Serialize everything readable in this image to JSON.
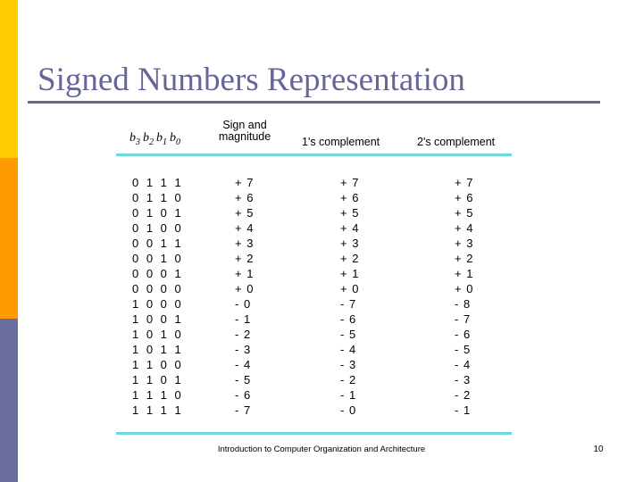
{
  "slide": {
    "title": "Signed Numbers Representation",
    "footer_text": "Introduction to Computer Organization and Architecture",
    "page_number": "10"
  },
  "table": {
    "header": {
      "bit_labels": [
        {
          "base": "b",
          "sub": "3"
        },
        {
          "base": "b",
          "sub": "2"
        },
        {
          "base": "b",
          "sub": "1"
        },
        {
          "base": "b",
          "sub": "0"
        }
      ],
      "sign_magnitude_line1": "Sign and",
      "sign_magnitude_line2": "magnitude",
      "ones_complement": "1's complement",
      "twos_complement": "2's complement"
    },
    "rows": [
      {
        "bits": "0 1 1 1",
        "sign_magnitude": "+ 7",
        "ones_complement": "+ 7",
        "twos_complement": "+ 7"
      },
      {
        "bits": "0 1 1 0",
        "sign_magnitude": "+ 6",
        "ones_complement": "+ 6",
        "twos_complement": "+ 6"
      },
      {
        "bits": "0 1 0 1",
        "sign_magnitude": "+ 5",
        "ones_complement": "+ 5",
        "twos_complement": "+ 5"
      },
      {
        "bits": "0 1 0 0",
        "sign_magnitude": "+ 4",
        "ones_complement": "+ 4",
        "twos_complement": "+ 4"
      },
      {
        "bits": "0 0 1 1",
        "sign_magnitude": "+ 3",
        "ones_complement": "+ 3",
        "twos_complement": "+ 3"
      },
      {
        "bits": "0 0 1 0",
        "sign_magnitude": "+ 2",
        "ones_complement": "+ 2",
        "twos_complement": "+ 2"
      },
      {
        "bits": "0 0 0 1",
        "sign_magnitude": "+ 1",
        "ones_complement": "+ 1",
        "twos_complement": "+ 1"
      },
      {
        "bits": "0 0 0 0",
        "sign_magnitude": "+ 0",
        "ones_complement": "+ 0",
        "twos_complement": "+ 0"
      },
      {
        "bits": "1 0 0 0",
        "sign_magnitude": "- 0",
        "ones_complement": "- 7",
        "twos_complement": "- 8"
      },
      {
        "bits": "1 0 0 1",
        "sign_magnitude": "- 1",
        "ones_complement": "- 6",
        "twos_complement": "- 7"
      },
      {
        "bits": "1 0 1 0",
        "sign_magnitude": "- 2",
        "ones_complement": "- 5",
        "twos_complement": "- 6"
      },
      {
        "bits": "1 0 1 1",
        "sign_magnitude": "- 3",
        "ones_complement": "- 4",
        "twos_complement": "- 5"
      },
      {
        "bits": "1 1 0 0",
        "sign_magnitude": "- 4",
        "ones_complement": "- 3",
        "twos_complement": "- 4"
      },
      {
        "bits": "1 1 0 1",
        "sign_magnitude": "- 5",
        "ones_complement": "- 2",
        "twos_complement": "- 3"
      },
      {
        "bits": "1 1 1 0",
        "sign_magnitude": "- 6",
        "ones_complement": "- 1",
        "twos_complement": "- 2"
      },
      {
        "bits": "1 1 1 1",
        "sign_magnitude": "- 7",
        "ones_complement": "- 0",
        "twos_complement": "- 1"
      }
    ]
  },
  "colors": {
    "sidebar_yellow": "#FFCC00",
    "sidebar_orange": "#FF9900",
    "sidebar_purple": "#6A6D9C",
    "title_text": "#666699",
    "rule_teal": "#6FD9DD",
    "body_text": "#000000"
  }
}
